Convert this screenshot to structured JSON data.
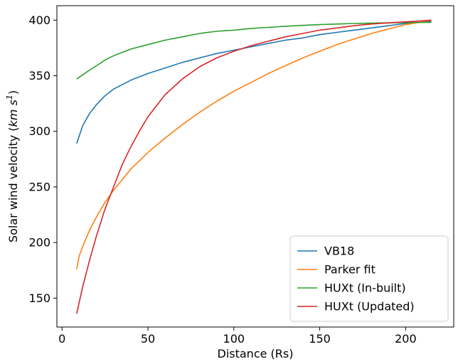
{
  "chart_data": {
    "type": "line",
    "title": "",
    "xlabel": "Distance (Rs)",
    "ylabel_prefix": "Solar wind velocity (",
    "ylabel_unit_main": "km s",
    "ylabel_unit_sup": "1",
    "ylabel_suffix": ")",
    "xlim": [
      -3,
      228
    ],
    "ylim": [
      124,
      413
    ],
    "xticks": [
      0,
      50,
      100,
      150,
      200
    ],
    "yticks": [
      150,
      200,
      250,
      300,
      350,
      400
    ],
    "grid": false,
    "legend_position": "lower-right",
    "series": [
      {
        "name": "VB18",
        "color": "#1f77b4",
        "points": [
          [
            8.5,
            289
          ],
          [
            12,
            305
          ],
          [
            16,
            316
          ],
          [
            20,
            324
          ],
          [
            25,
            332
          ],
          [
            30,
            338
          ],
          [
            40,
            346
          ],
          [
            50,
            352
          ],
          [
            60,
            357
          ],
          [
            70,
            362
          ],
          [
            80,
            366
          ],
          [
            90,
            370
          ],
          [
            100,
            373
          ],
          [
            110,
            376
          ],
          [
            120,
            379
          ],
          [
            130,
            382
          ],
          [
            140,
            384
          ],
          [
            150,
            387
          ],
          [
            160,
            389
          ],
          [
            170,
            391
          ],
          [
            180,
            393
          ],
          [
            190,
            395
          ],
          [
            200,
            397
          ],
          [
            208,
            398
          ],
          [
            215,
            399
          ]
        ]
      },
      {
        "name": "Parker fit",
        "color": "#ff7f0e",
        "points": [
          [
            8.5,
            176
          ],
          [
            10,
            188
          ],
          [
            13,
            200
          ],
          [
            16,
            211
          ],
          [
            20,
            223
          ],
          [
            25,
            236
          ],
          [
            30,
            247
          ],
          [
            40,
            266
          ],
          [
            50,
            281
          ],
          [
            60,
            294
          ],
          [
            70,
            306
          ],
          [
            80,
            317
          ],
          [
            90,
            327
          ],
          [
            100,
            336
          ],
          [
            110,
            344
          ],
          [
            120,
            352
          ],
          [
            130,
            359
          ],
          [
            140,
            366
          ],
          [
            150,
            372
          ],
          [
            160,
            378
          ],
          [
            170,
            383
          ],
          [
            180,
            388
          ],
          [
            190,
            392
          ],
          [
            200,
            396
          ],
          [
            208,
            398
          ],
          [
            215,
            400
          ]
        ]
      },
      {
        "name": "HUXt (In-built)",
        "color": "#2ca02c",
        "points": [
          [
            8.5,
            347
          ],
          [
            15,
            354
          ],
          [
            20,
            359
          ],
          [
            25,
            364
          ],
          [
            30,
            368
          ],
          [
            40,
            374
          ],
          [
            50,
            378
          ],
          [
            60,
            382
          ],
          [
            70,
            385
          ],
          [
            80,
            388
          ],
          [
            90,
            390
          ],
          [
            100,
            391
          ],
          [
            110,
            392.5
          ],
          [
            120,
            393.5
          ],
          [
            130,
            394.5
          ],
          [
            140,
            395.3
          ],
          [
            150,
            396
          ],
          [
            160,
            396.5
          ],
          [
            170,
            397
          ],
          [
            180,
            397.3
          ],
          [
            190,
            397.6
          ],
          [
            200,
            397.8
          ],
          [
            208,
            397.9
          ],
          [
            215,
            398
          ]
        ]
      },
      {
        "name": "HUXt (Updated)",
        "color": "#d62728",
        "points": [
          [
            8.5,
            136
          ],
          [
            12,
            160
          ],
          [
            16,
            184
          ],
          [
            20,
            206
          ],
          [
            25,
            230
          ],
          [
            30,
            250
          ],
          [
            35,
            270
          ],
          [
            40,
            286
          ],
          [
            45,
            300
          ],
          [
            50,
            313
          ],
          [
            60,
            333
          ],
          [
            70,
            347
          ],
          [
            80,
            358
          ],
          [
            90,
            366
          ],
          [
            100,
            372
          ],
          [
            110,
            377
          ],
          [
            120,
            381
          ],
          [
            130,
            385
          ],
          [
            140,
            388
          ],
          [
            150,
            391
          ],
          [
            160,
            393
          ],
          [
            170,
            395
          ],
          [
            180,
            396.5
          ],
          [
            190,
            397.5
          ],
          [
            200,
            398.5
          ],
          [
            208,
            399.2
          ],
          [
            215,
            400
          ]
        ]
      }
    ]
  }
}
